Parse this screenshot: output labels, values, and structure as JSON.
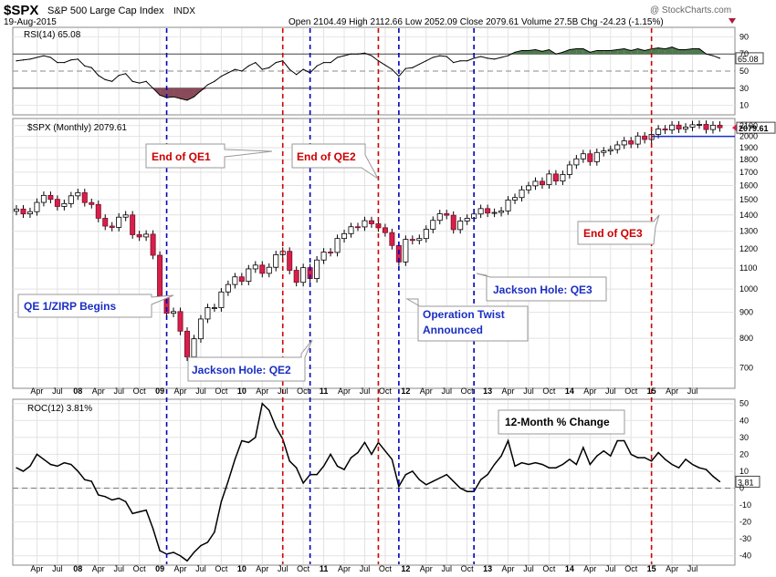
{
  "header": {
    "symbol": "$SPX",
    "name": "S&P 500 Large Cap Index",
    "exchange": "INDX",
    "date": "19-Aug-2015",
    "watermark": "@ StockCharts.com",
    "quote": "Open 2104.49  High 2112.66  Low 2052.09  Close 2079.61  Volume 27.5B  Chg -24.23 (-1.15%)",
    "down_arrow_color": "#b0183a"
  },
  "colors": {
    "red_line": "#d00000",
    "blue_line": "#0000bb",
    "up_candle": "#ffffff",
    "down_candle": "#d81f4a",
    "rsi_green": "#4e7a4e",
    "rsi_red": "#8a4a5a"
  },
  "rsi_panel": {
    "label": "RSI(14) 65.08",
    "current": "65.08",
    "ticks": [
      "90",
      "70",
      "50",
      "30",
      "10"
    ]
  },
  "price_panel": {
    "label": "$SPX (Monthly) 2079.61",
    "current": "2079.61",
    "ticks": [
      "2100",
      "2000",
      "1900",
      "1800",
      "1700",
      "1600",
      "1500",
      "1400",
      "1300",
      "1200",
      "1100",
      "1000",
      "900",
      "800",
      "700"
    ]
  },
  "roc_panel": {
    "label": "ROC(12) 3.81%",
    "current": "3.81",
    "ticks": [
      "50",
      "40",
      "30",
      "20",
      "10",
      "0",
      "-10",
      "-20",
      "-30",
      "-40"
    ]
  },
  "x_axis": {
    "labels": [
      "Apr",
      "Jul",
      "08",
      "Apr",
      "Jul",
      "Oct",
      "09",
      "Apr",
      "Jul",
      "Oct",
      "10",
      "Apr",
      "Jul",
      "Oct",
      "11",
      "Apr",
      "Jul",
      "Oct",
      "12",
      "Apr",
      "Jul",
      "Oct",
      "13",
      "Apr",
      "Jul",
      "Oct",
      "14",
      "Apr",
      "Jul",
      "Oct",
      "15",
      "Apr",
      "Jul"
    ]
  },
  "annotations": {
    "qe1_end": "End of QE1",
    "qe2_end": "End of QE2",
    "qe3_end": "End of QE3",
    "qe1_begin": "QE 1/ZIRP Begins",
    "jh_qe2": "Jackson Hole: QE2",
    "twist_line1": "Operation Twist",
    "twist_line2": "Announced",
    "jh_qe3": "Jackson Hole: QE3",
    "roc_title": "12-Month % Change"
  },
  "chart_data": [
    {
      "type": "candlestick",
      "title": "$SPX (Monthly) 2079.61",
      "y_scale": "log",
      "ylim": [
        640,
        2160
      ],
      "start": "Jan 2007",
      "monthly_close": [
        1438,
        1407,
        1421,
        1482,
        1530,
        1503,
        1455,
        1474,
        1527,
        1549,
        1481,
        1468,
        1379,
        1331,
        1323,
        1386,
        1400,
        1280,
        1267,
        1283,
        1166,
        969,
        896,
        903,
        826,
        735,
        798,
        873,
        919,
        919,
        987,
        1021,
        1057,
        1036,
        1096,
        1115,
        1074,
        1104,
        1169,
        1187,
        1089,
        1031,
        1102,
        1049,
        1141,
        1183,
        1181,
        1258,
        1286,
        1327,
        1326,
        1364,
        1345,
        1321,
        1292,
        1219,
        1131,
        1253,
        1247,
        1258,
        1312,
        1366,
        1408,
        1398,
        1310,
        1362,
        1379,
        1406,
        1441,
        1412,
        1416,
        1426,
        1498,
        1515,
        1569,
        1598,
        1631,
        1606,
        1686,
        1633,
        1682,
        1757,
        1806,
        1848,
        1783,
        1859,
        1872,
        1884,
        1924,
        1960,
        1931,
        2003,
        1972,
        2018,
        2068,
        2059,
        2105,
        2068,
        2086,
        2108,
        2112,
        2063,
        2104,
        2080
      ],
      "markers": {
        "red_lines": [
          "Apr 2010 (End of QE1)",
          "Jun 2011 (End of QE2)",
          "Oct 2014 (End of QE3)"
        ],
        "blue_lines": [
          "Nov 2008 (QE1 begins)",
          "Aug 2010 (Jackson Hole QE2)",
          "Sep 2011 (Operation Twist)",
          "Aug 2012 (Jackson Hole QE3)"
        ],
        "horizontal_level": 2000
      }
    },
    {
      "type": "line",
      "title": "RSI(14) 65.08",
      "ylim": [
        0,
        100
      ],
      "reference_levels": [
        70,
        50,
        30
      ],
      "values": [
        62,
        63,
        64,
        66,
        68,
        66,
        60,
        60,
        63,
        64,
        56,
        54,
        45,
        40,
        38,
        45,
        47,
        38,
        36,
        38,
        30,
        22,
        19,
        20,
        18,
        16,
        20,
        27,
        34,
        38,
        44,
        48,
        52,
        50,
        56,
        60,
        52,
        54,
        60,
        62,
        52,
        46,
        52,
        48,
        56,
        60,
        60,
        66,
        68,
        70,
        70,
        71,
        68,
        62,
        57,
        52,
        44,
        53,
        54,
        58,
        62,
        66,
        68,
        67,
        60,
        62,
        62,
        65,
        67,
        65,
        64,
        66,
        68,
        72,
        74,
        74,
        75,
        73,
        75,
        70,
        72,
        75,
        76,
        76,
        72,
        74,
        74,
        74,
        75,
        76,
        74,
        76,
        74,
        76,
        77,
        76,
        78,
        75,
        75,
        76,
        76,
        70,
        68,
        65
      ]
    },
    {
      "type": "line",
      "title": "ROC(12) 3.81%",
      "ylim": [
        -45,
        52
      ],
      "values": [
        12,
        10,
        13,
        20,
        17,
        14,
        13,
        15,
        14,
        10,
        5,
        4,
        -4,
        -5,
        -7,
        -6,
        -8,
        -15,
        -14,
        -13,
        -24,
        -37,
        -39,
        -38,
        -40,
        -43,
        -38,
        -34,
        -32,
        -26,
        -8,
        4,
        17,
        28,
        27,
        30,
        50,
        46,
        36,
        29,
        16,
        12,
        3,
        8,
        8,
        13,
        20,
        13,
        11,
        18,
        21,
        27,
        20,
        27,
        22,
        17,
        1,
        8,
        10,
        5,
        2,
        4,
        6,
        8,
        4,
        0,
        -2,
        -2,
        5,
        8,
        14,
        19,
        28,
        13,
        15,
        14,
        15,
        14,
        12,
        12,
        14,
        17,
        14,
        24,
        14,
        19,
        22,
        19,
        28,
        28,
        20,
        18,
        18,
        16,
        21,
        17,
        14,
        12,
        17,
        14,
        12,
        11,
        7,
        3.81
      ]
    }
  ]
}
